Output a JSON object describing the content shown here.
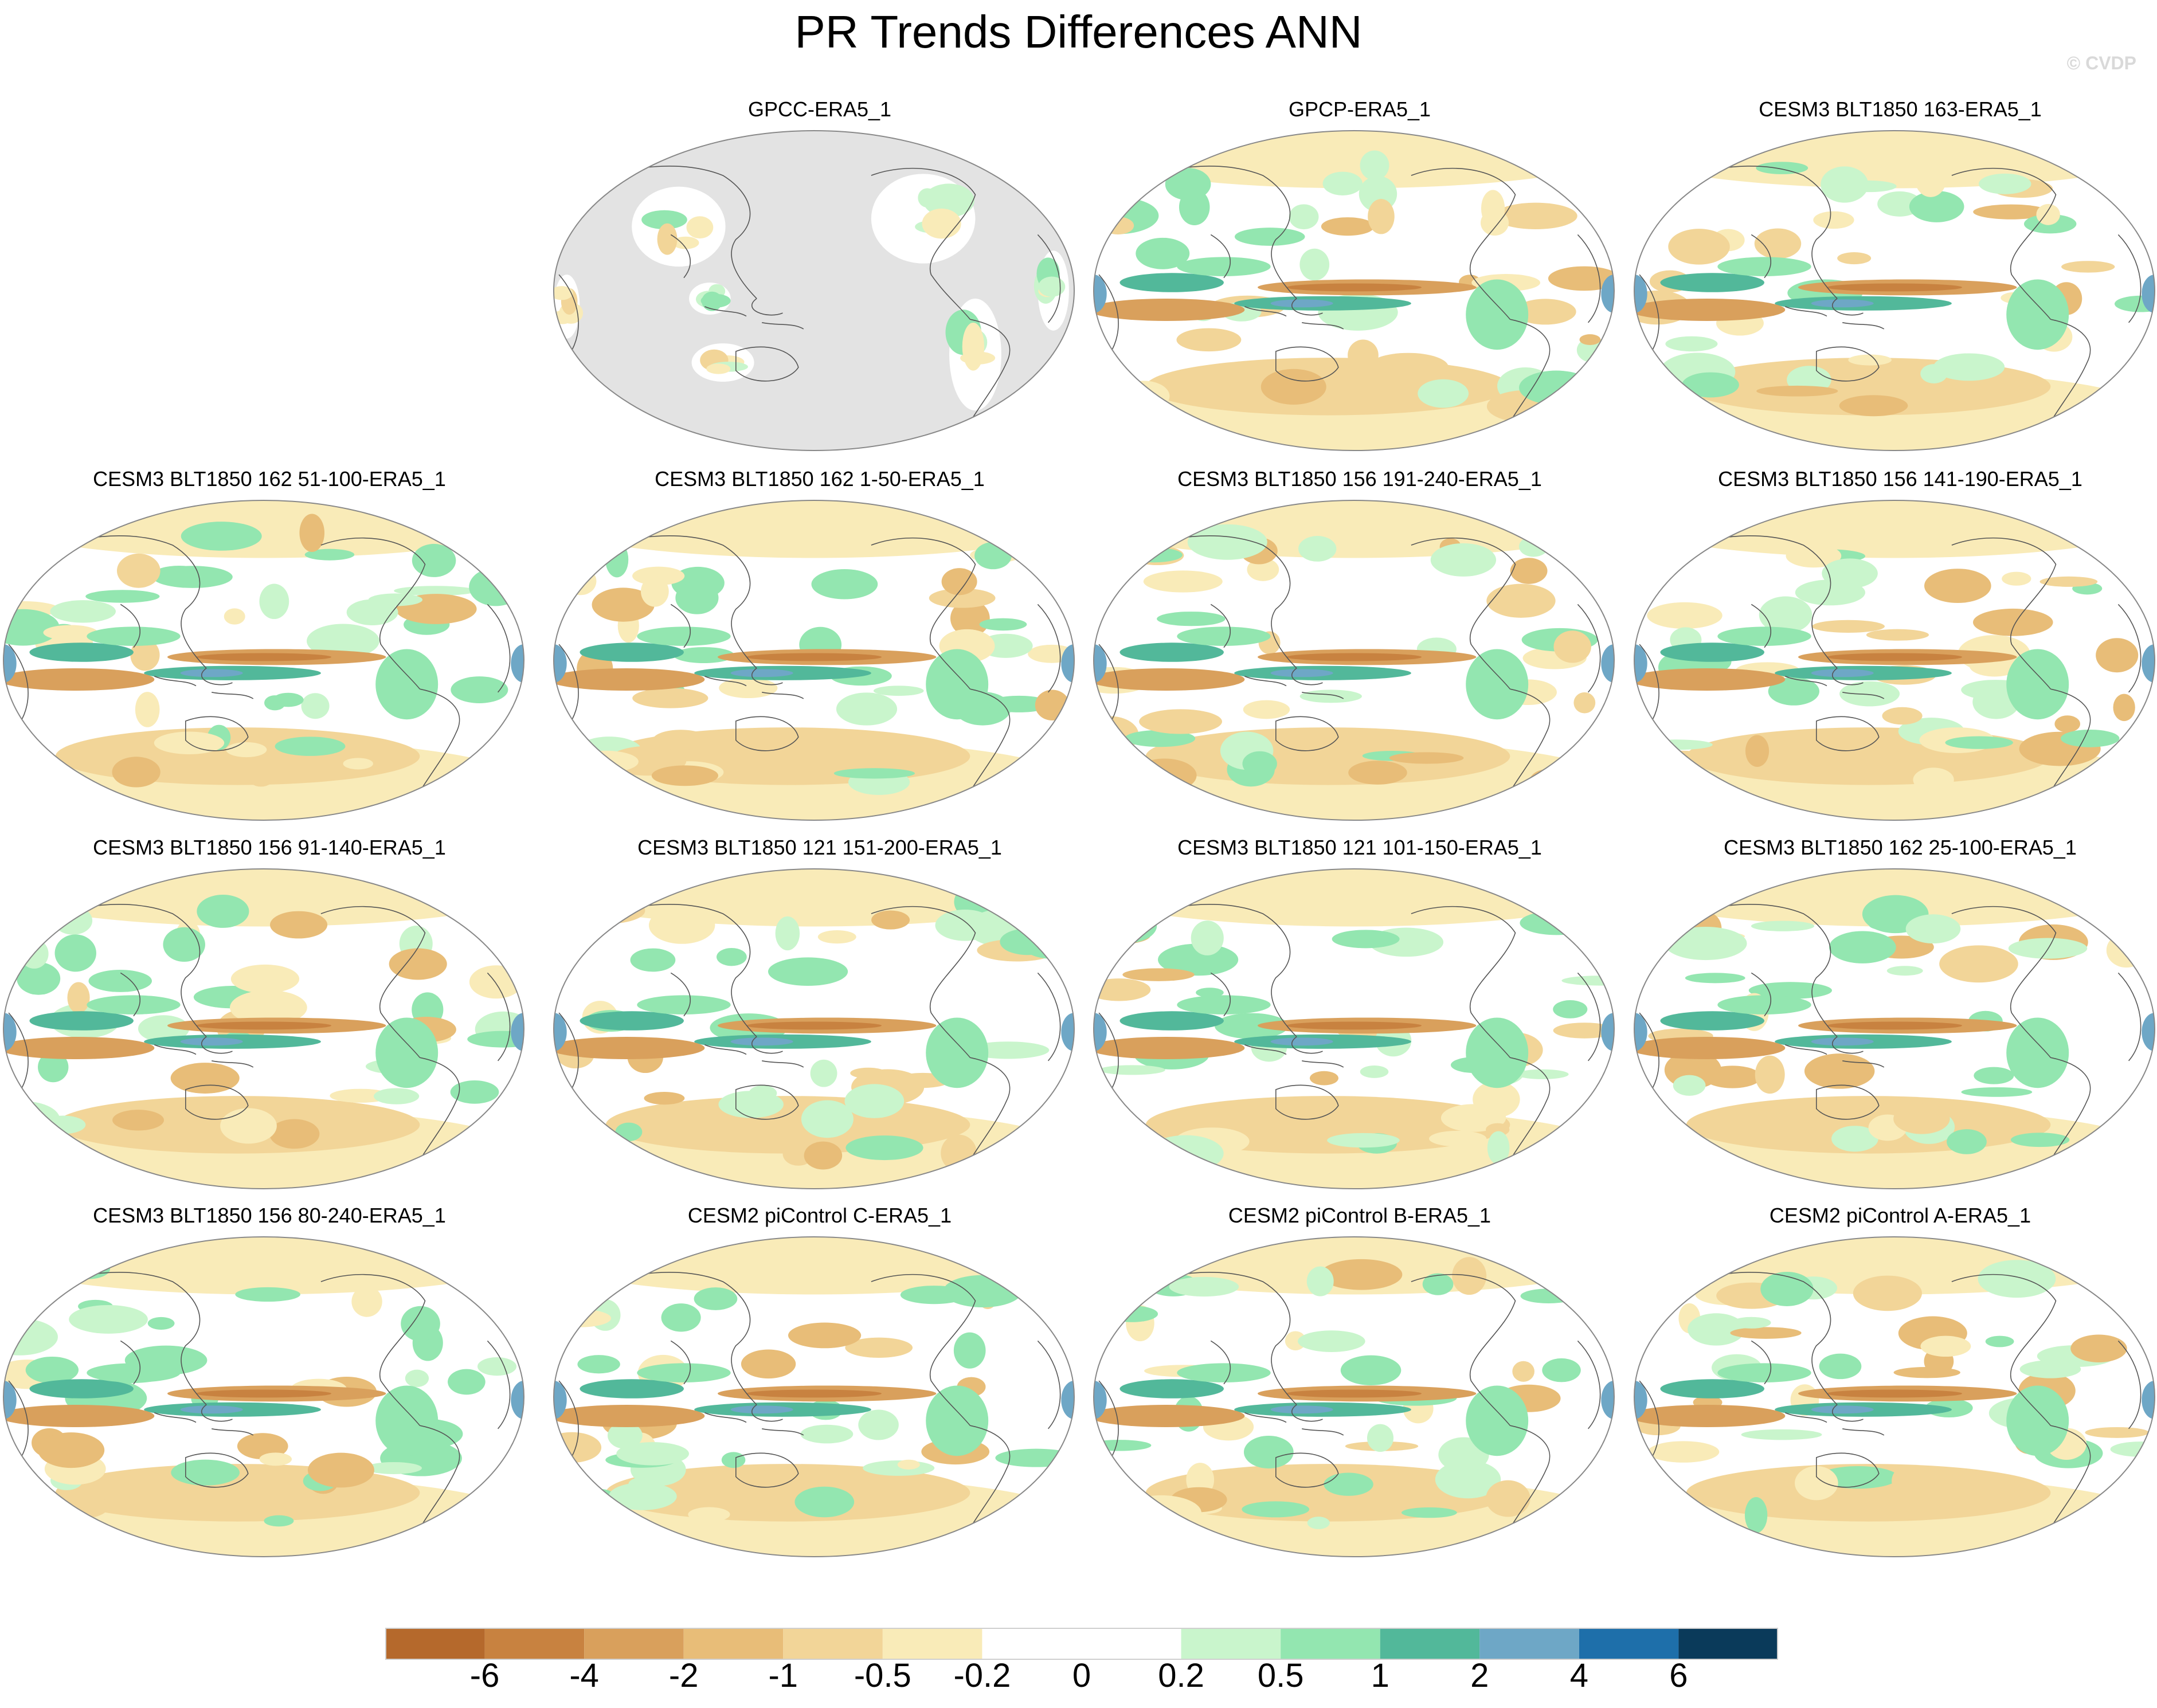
{
  "title": "PR Trends Differences ANN",
  "watermark": "© CVDP",
  "panels": [
    {
      "title": "GPCC-ERA5_1",
      "variant": "land"
    },
    {
      "title": "GPCP-ERA5_1",
      "variant": "obs"
    },
    {
      "title": "CESM3 BLT1850 163-ERA5_1",
      "variant": "model"
    },
    {
      "title": "CESM3 BLT1850 162 51-100-ERA5_1",
      "variant": "model"
    },
    {
      "title": "CESM3 BLT1850 162 1-50-ERA5_1",
      "variant": "model"
    },
    {
      "title": "CESM3 BLT1850 156 191-240-ERA5_1",
      "variant": "model"
    },
    {
      "title": "CESM3 BLT1850 156 141-190-ERA5_1",
      "variant": "model"
    },
    {
      "title": "CESM3 BLT1850 156 91-140-ERA5_1",
      "variant": "model"
    },
    {
      "title": "CESM3 BLT1850 121 151-200-ERA5_1",
      "variant": "model"
    },
    {
      "title": "CESM3 BLT1850 121 101-150-ERA5_1",
      "variant": "model"
    },
    {
      "title": "CESM3 BLT1850 162 25-100-ERA5_1",
      "variant": "model"
    },
    {
      "title": "CESM3 BLT1850 156 80-240-ERA5_1",
      "variant": "model"
    },
    {
      "title": "CESM2 piControl C-ERA5_1",
      "variant": "model"
    },
    {
      "title": "CESM2 piControl B-ERA5_1",
      "variant": "model"
    },
    {
      "title": "CESM2 piControl A-ERA5_1",
      "variant": "model"
    }
  ],
  "colorbar": {
    "colors": [
      "#b5692c",
      "#c88240",
      "#d9a05c",
      "#e8bd78",
      "#f2d598",
      "#f9ebb8",
      "#ffffff",
      "#ffffff",
      "#c9f5cc",
      "#93e6b0",
      "#52b89a",
      "#6ea7c6",
      "#1e6faa",
      "#0a3a5a"
    ],
    "labels": [
      "-6",
      "-4",
      "-2",
      "-1",
      "-0.5",
      "-0.2",
      "0",
      "0.2",
      "0.5",
      "1",
      "2",
      "4",
      "6"
    ]
  }
}
